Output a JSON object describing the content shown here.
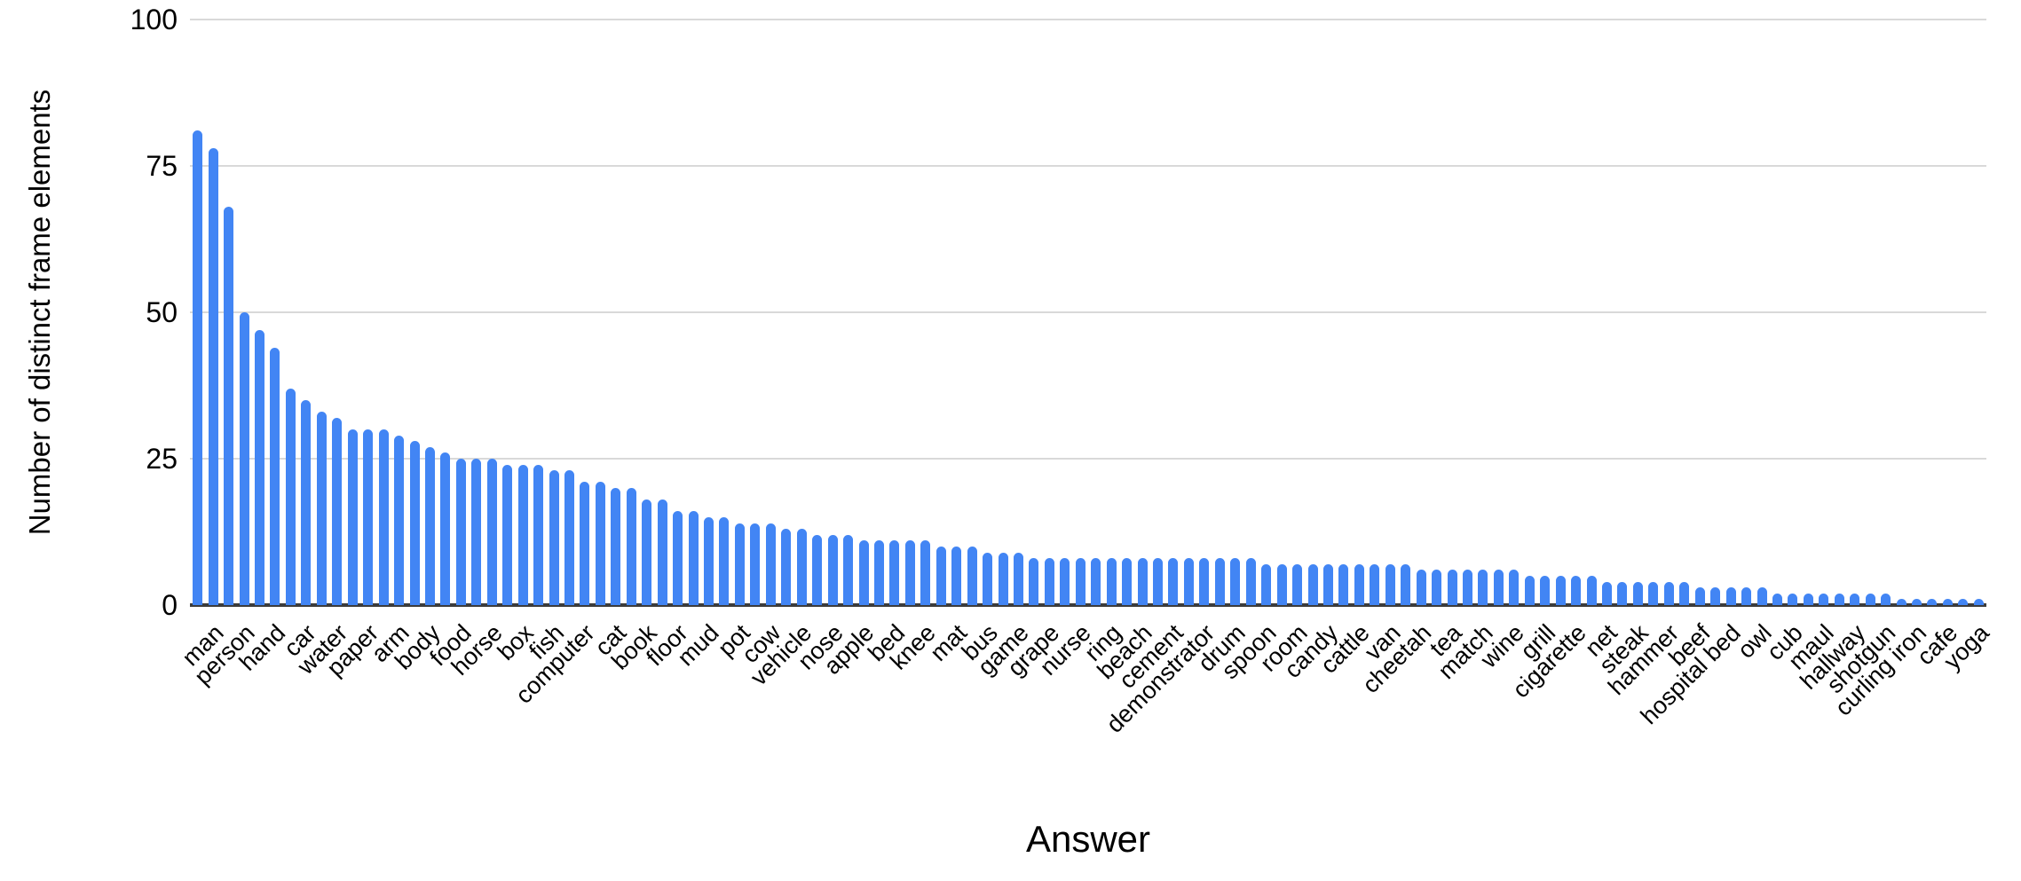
{
  "chart_data": {
    "type": "bar",
    "title": "",
    "xlabel": "Answer",
    "ylabel": "Number of distinct frame elements",
    "ylim": [
      0,
      100
    ],
    "yticks": [
      0,
      25,
      50,
      75,
      100
    ],
    "grid": true,
    "legend": "none",
    "bar_color": "#4285f4",
    "gridline_color": "#d9d9d9",
    "axis_line_color": "#3c3c3c",
    "label_rotation_degrees": 45,
    "categories": [
      "",
      "man",
      "",
      "person",
      "",
      "hand",
      "",
      "car",
      "",
      "water",
      "",
      "paper",
      "",
      "arm",
      "",
      "body",
      "",
      "food",
      "",
      "horse",
      "",
      "box",
      "",
      "fish",
      "",
      "computer",
      "",
      "cat",
      "",
      "book",
      "",
      "floor",
      "",
      "mud",
      "",
      "pot",
      "",
      "cow",
      "",
      "vehicle",
      "",
      "nose",
      "",
      "apple",
      "",
      "bed",
      "",
      "knee",
      "",
      "mat",
      "",
      "bus",
      "",
      "game",
      "",
      "grape",
      "",
      "nurse",
      "",
      "ring",
      "",
      "beach",
      "",
      "cement",
      "",
      "demonstrator",
      "",
      "drum",
      "",
      "spoon",
      "",
      "room",
      "",
      "candy",
      "",
      "cattle",
      "",
      "van",
      "",
      "cheetah",
      "",
      "tea",
      "",
      "match",
      "",
      "wine",
      "",
      "grill",
      "",
      "cigarette",
      "",
      "net",
      "",
      "steak",
      "",
      "hammer",
      "",
      "beef",
      "",
      "hospital bed",
      "",
      "owl",
      "",
      "cub",
      "",
      "maul",
      "",
      "hallway",
      "",
      "shotgun",
      "",
      "curling iron",
      "",
      "cafe",
      "",
      "yoga"
    ],
    "values": [
      81,
      78,
      68,
      50,
      47,
      44,
      37,
      35,
      33,
      32,
      30,
      30,
      30,
      29,
      28,
      27,
      26,
      25,
      25,
      25,
      24,
      24,
      24,
      23,
      23,
      21,
      21,
      20,
      20,
      18,
      18,
      16,
      16,
      15,
      15,
      14,
      14,
      14,
      13,
      13,
      12,
      12,
      12,
      11,
      11,
      11,
      11,
      11,
      10,
      10,
      10,
      9,
      9,
      9,
      8,
      8,
      8,
      8,
      8,
      8,
      8,
      8,
      8,
      8,
      8,
      8,
      8,
      8,
      8,
      7,
      7,
      7,
      7,
      7,
      7,
      7,
      7,
      7,
      7,
      6,
      6,
      6,
      6,
      6,
      6,
      6,
      5,
      5,
      5,
      5,
      5,
      4,
      4,
      4,
      4,
      4,
      4,
      3,
      3,
      3,
      3,
      3,
      2,
      2,
      2,
      2,
      2,
      2,
      2,
      2,
      1,
      1,
      1,
      1,
      1,
      1
    ]
  }
}
